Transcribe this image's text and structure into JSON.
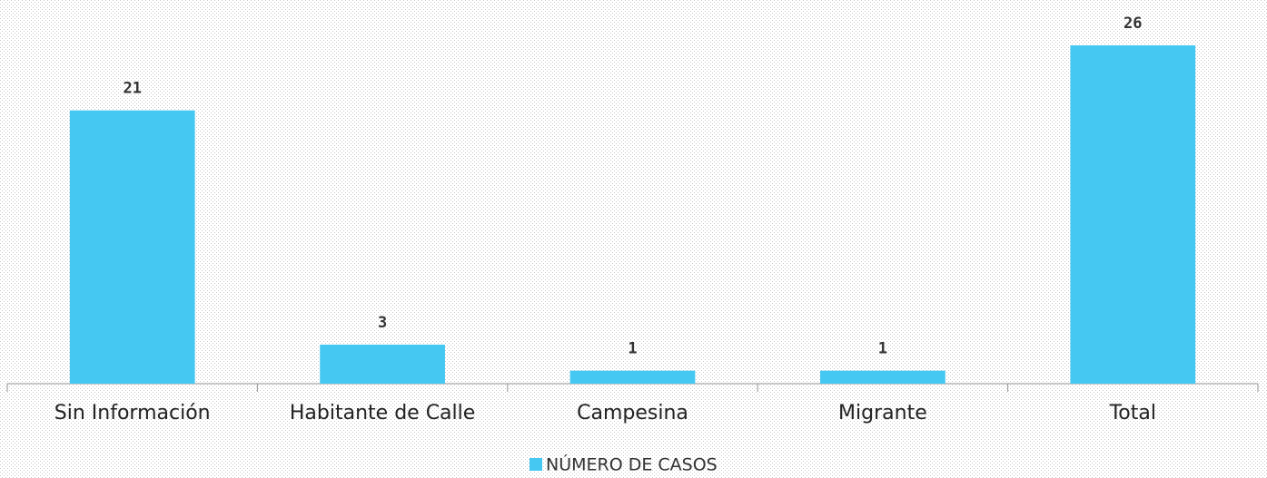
{
  "chart_data": {
    "type": "bar",
    "categories": [
      "Sin Información",
      "Habitante de Calle",
      "Campesina",
      "Migrante",
      "Total"
    ],
    "series": [
      {
        "name": "NÚMERO DE CASOS",
        "color": "#45c8f2",
        "values": [
          21,
          3,
          1,
          1,
          26
        ]
      }
    ],
    "ylim": [
      0,
      26
    ]
  }
}
